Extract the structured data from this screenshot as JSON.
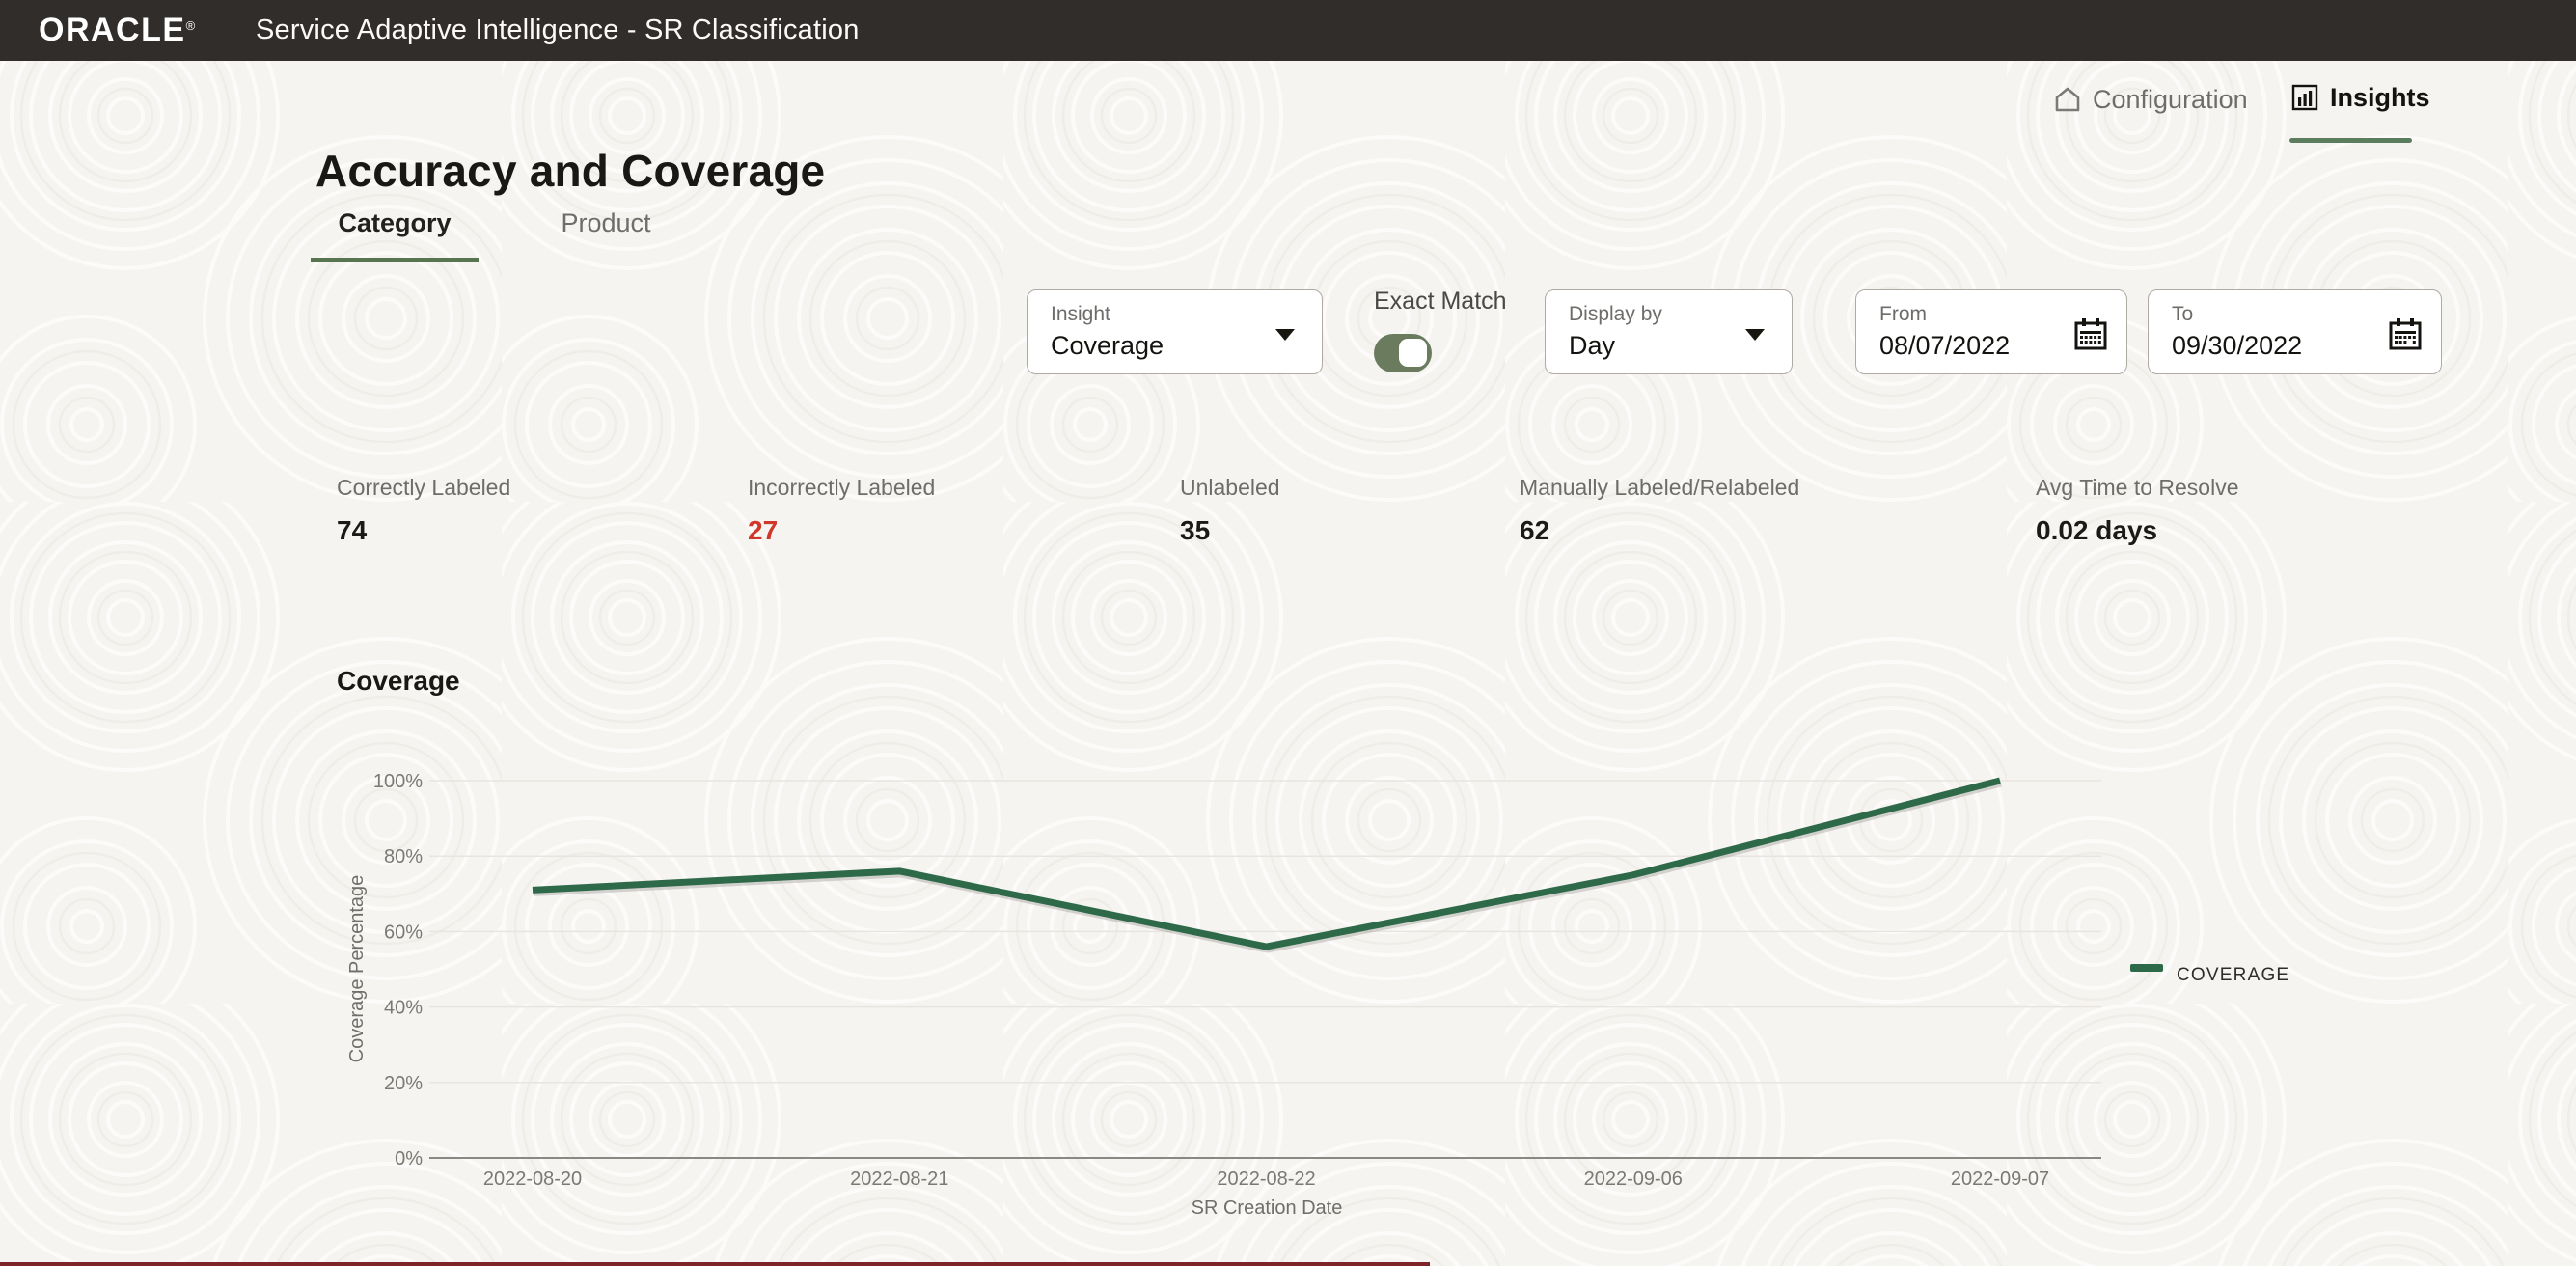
{
  "topbar": {
    "brand": "ORACLE",
    "registered": "®",
    "title": "Service Adaptive Intelligence - SR Classification"
  },
  "nav": {
    "configuration": "Configuration",
    "insights": "Insights"
  },
  "page": {
    "title": "Accuracy and Coverage"
  },
  "tabs": {
    "category": "Category",
    "product": "Product"
  },
  "filters": {
    "insight": {
      "label": "Insight",
      "value": "Coverage"
    },
    "exact_match": {
      "label": "Exact Match",
      "on": true
    },
    "display_by": {
      "label": "Display by",
      "value": "Day"
    },
    "from": {
      "label": "From",
      "value": "08/07/2022"
    },
    "to": {
      "label": "To",
      "value": "09/30/2022"
    }
  },
  "stats": [
    {
      "label": "Correctly Labeled",
      "value": "74"
    },
    {
      "label": "Incorrectly Labeled",
      "value": "27",
      "highlight": "red"
    },
    {
      "label": "Unlabeled",
      "value": "35"
    },
    {
      "label": "Manually Labeled/Relabeled",
      "value": "62"
    },
    {
      "label": "Avg Time to Resolve",
      "value": "0.02 days"
    }
  ],
  "chart_section": {
    "title": "Coverage"
  },
  "chart_data": {
    "type": "line",
    "title": "Coverage",
    "x": [
      "2022-08-20",
      "2022-08-21",
      "2022-08-22",
      "2022-09-06",
      "2022-09-07"
    ],
    "series": [
      {
        "name": "COVERAGE",
        "values": [
          71,
          76,
          56,
          75,
          100
        ]
      }
    ],
    "xlabel": "SR Creation Date",
    "ylabel": "Coverage Percentage",
    "ylim": [
      0,
      100
    ],
    "yticks": [
      0,
      20,
      40,
      60,
      80,
      100
    ],
    "ytick_suffix": "%",
    "grid": true,
    "legend_position": "right",
    "line_color": "#2e6a49"
  },
  "colors": {
    "topbar_bg": "#312d2a",
    "accent_green": "#5c7c5e",
    "toggle_green": "#6a7b5e",
    "line_green": "#2e6a49",
    "danger_red": "#d0362a"
  }
}
